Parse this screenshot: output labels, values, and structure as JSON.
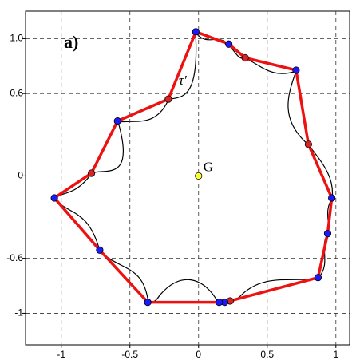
{
  "chart_data": {
    "type": "scatter",
    "panel_label": "a)",
    "curve_label": "τ'",
    "x": [
      -0.02,
      0.22,
      0.34,
      0.71,
      0.8,
      0.97,
      0.94,
      0.87,
      0.23,
      0.19,
      0.15,
      -0.37,
      -0.72,
      -1.05,
      -0.78,
      -0.59,
      -0.22
    ],
    "y": [
      1.05,
      0.96,
      0.86,
      0.77,
      0.23,
      -0.16,
      -0.42,
      -0.74,
      -0.91,
      -0.92,
      -0.92,
      -0.92,
      -0.54,
      -0.16,
      0.02,
      0.4,
      0.56
    ],
    "point_colors": [
      "#1a1aff",
      "#1a1aff",
      "#dd2222",
      "#1a1aff",
      "#dd2222",
      "#1a1aff",
      "#1a1aff",
      "#1a1aff",
      "#dd2222",
      "#1a1aff",
      "#1a1aff",
      "#1a1aff",
      "#1a1aff",
      "#1a1aff",
      "#dd2222",
      "#1a1aff",
      "#dd2222"
    ],
    "line_color": "#ee1111",
    "centroid": {
      "label": "G",
      "x": 0,
      "y": 0,
      "color": "#ffff33"
    },
    "xlim": [
      -1.26,
      1.1
    ],
    "ylim": [
      -1.23,
      1.2
    ],
    "xticks": [
      -1,
      -0.5,
      0,
      0.5,
      1
    ],
    "yticks": [
      -1,
      -0.6,
      0,
      0.6,
      {
        "value": 1,
        "label": "1.0"
      }
    ],
    "grid": true
  }
}
